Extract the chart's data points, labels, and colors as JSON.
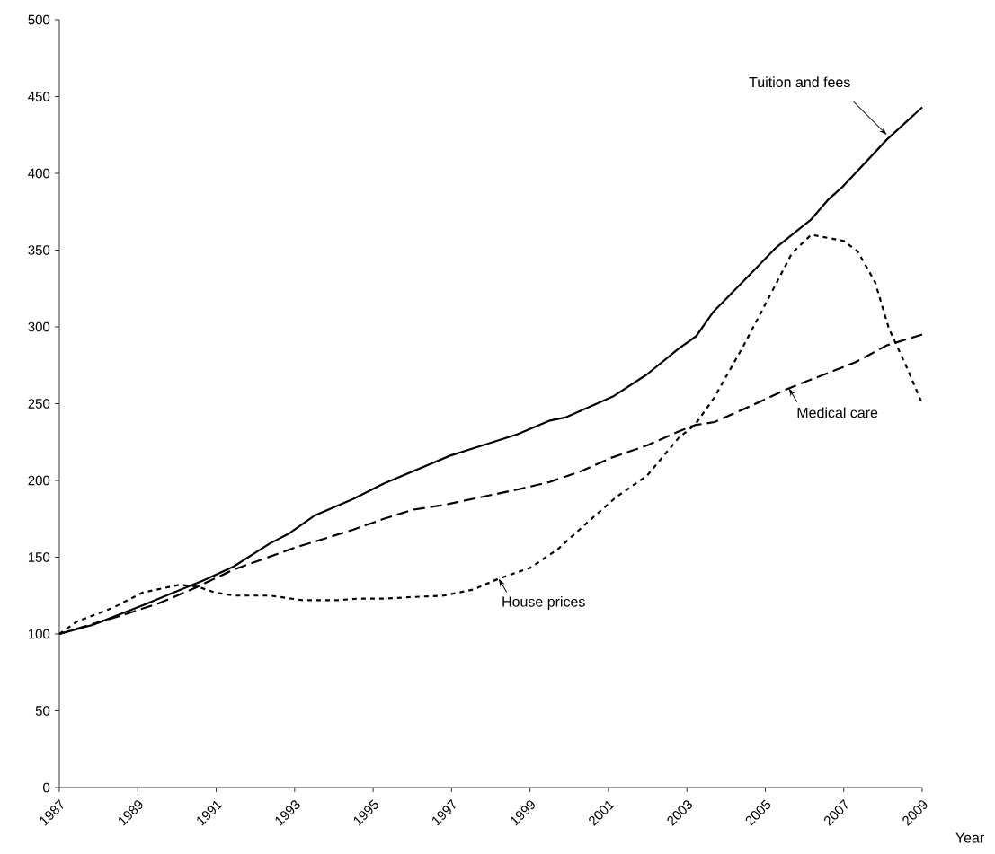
{
  "chart_data": {
    "type": "line",
    "xlabel": "Year",
    "xlim": [
      1987,
      2009
    ],
    "xticks": [
      1987,
      1989,
      1991,
      1993,
      1995,
      1997,
      1999,
      2001,
      2003,
      2005,
      2007,
      2009
    ],
    "ylim": [
      0,
      500
    ],
    "yticks": [
      0,
      50,
      100,
      150,
      200,
      250,
      300,
      350,
      400,
      450,
      500
    ],
    "annotations": [
      {
        "text": "Tuition and fees",
        "x": 2008.1,
        "y": 425
      },
      {
        "text": "Medical care",
        "x": 2005.6,
        "y": 260
      },
      {
        "text": "House prices",
        "x": 1998.2,
        "y": 136
      }
    ],
    "series": [
      {
        "color": "#000000",
        "line_style": "solid",
        "x": [
          1987,
          1987.86,
          1989.16,
          1989.92,
          1990.68,
          1991.45,
          1992.37,
          1992.83,
          1993.5,
          1994.5,
          1995.27,
          1996.95,
          1998.67,
          1999.51,
          1999.9,
          2001.14,
          2001.98,
          2002.8,
          2003.24,
          2003.68,
          2004.45,
          2005.29,
          2006.17,
          2006.61,
          2006.96,
          2008.1,
          2009
        ],
        "values": [
          100,
          106,
          119,
          127,
          135,
          144,
          159,
          165,
          177,
          188,
          198,
          216,
          230,
          239,
          241,
          255,
          269,
          286,
          294,
          310,
          330,
          352,
          370,
          383,
          391,
          422,
          443
        ]
      },
      {
        "color": "#000000",
        "line_style": "dashed",
        "x": [
          1987,
          1988.7,
          1989.54,
          1990.46,
          1991.45,
          1992.22,
          1992.98,
          1993.75,
          1994.5,
          1995.27,
          1996.03,
          1996.8,
          1998.1,
          1998.67,
          1999.5,
          2000.3,
          2001.1,
          2002.0,
          2002.8,
          2003.2,
          2003.7,
          2004.5,
          2005.6,
          2006.4,
          2007.3,
          2008.1,
          2009
        ],
        "values": [
          100,
          113,
          120,
          130,
          142,
          149,
          156,
          162,
          168,
          175,
          181,
          184,
          191,
          194,
          199,
          206,
          215,
          223,
          232,
          236,
          238,
          247,
          260,
          268,
          277,
          288,
          295
        ]
      },
      {
        "color": "#000000",
        "line_style": "dotted",
        "x": [
          1987,
          1987.44,
          1988.36,
          1989.13,
          1990.05,
          1990.5,
          1990.97,
          1991.45,
          1992.37,
          1993.2,
          1994.1,
          1994.6,
          1995.27,
          1995.96,
          1996.8,
          1997.57,
          1998.2,
          1999.0,
          1999.7,
          2000.48,
          2001.19,
          2001.98,
          2002.8,
          2003.2,
          2003.7,
          2004.45,
          2005.15,
          2005.68,
          2006.17,
          2007.0,
          2007.36,
          2007.8,
          2008.15,
          2008.6,
          2009
        ],
        "values": [
          100,
          108,
          117,
          127,
          132,
          131,
          127,
          125,
          125,
          122,
          122,
          123,
          123,
          124,
          125,
          129,
          136,
          143,
          155,
          173,
          189,
          203,
          228,
          236,
          254,
          288,
          322,
          348,
          360,
          356,
          349,
          329,
          299,
          274,
          250
        ]
      }
    ]
  }
}
